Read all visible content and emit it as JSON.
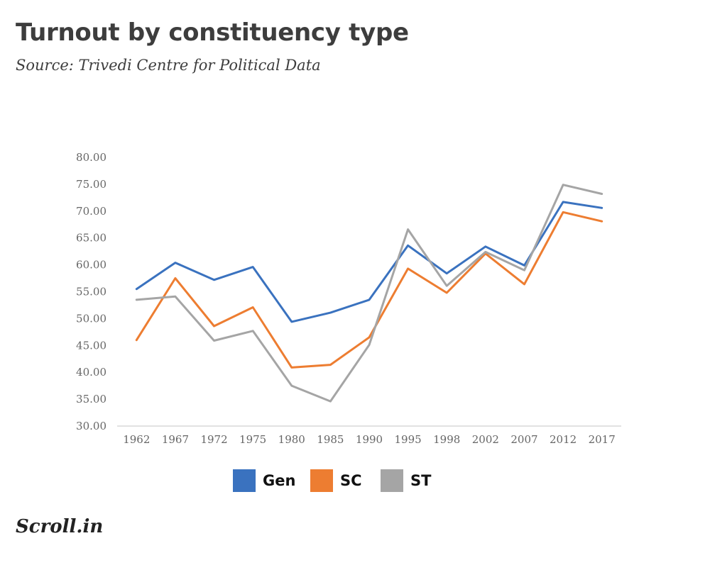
{
  "header": {
    "title": "Turnout by constituency type",
    "subtitle": "Source: Trivedi Centre for Political Data"
  },
  "brand": {
    "logo_text": "Scroll.in"
  },
  "chart_data": {
    "type": "line",
    "title": "Turnout by constituency type",
    "subtitle": "Source: Trivedi Centre for Political Data",
    "xlabel": "",
    "ylabel": "",
    "categories": [
      "1962",
      "1967",
      "1972",
      "1975",
      "1980",
      "1985",
      "1990",
      "1995",
      "1998",
      "2002",
      "2007",
      "2012",
      "2017"
    ],
    "y_ticks": [
      "30.00",
      "35.00",
      "40.00",
      "45.00",
      "50.00",
      "55.00",
      "60.00",
      "65.00",
      "70.00",
      "75.00",
      "80.00"
    ],
    "ylim": [
      30,
      80
    ],
    "grid": false,
    "legend_position": "bottom",
    "series": [
      {
        "name": "Gen",
        "color": "#3a72bf",
        "values": [
          55.5,
          60.4,
          57.2,
          59.6,
          49.4,
          51.1,
          53.5,
          63.6,
          58.4,
          63.4,
          59.9,
          71.7,
          70.6
        ]
      },
      {
        "name": "SC",
        "color": "#ed7d31",
        "values": [
          46.0,
          57.5,
          48.6,
          52.1,
          40.9,
          41.4,
          46.5,
          59.3,
          54.8,
          62.1,
          56.4,
          69.8,
          68.1
        ]
      },
      {
        "name": "ST",
        "color": "#a5a5a5",
        "values": [
          53.5,
          54.1,
          45.9,
          47.7,
          37.5,
          34.6,
          45.1,
          66.6,
          56.1,
          62.4,
          59.0,
          74.9,
          73.2
        ]
      }
    ]
  }
}
